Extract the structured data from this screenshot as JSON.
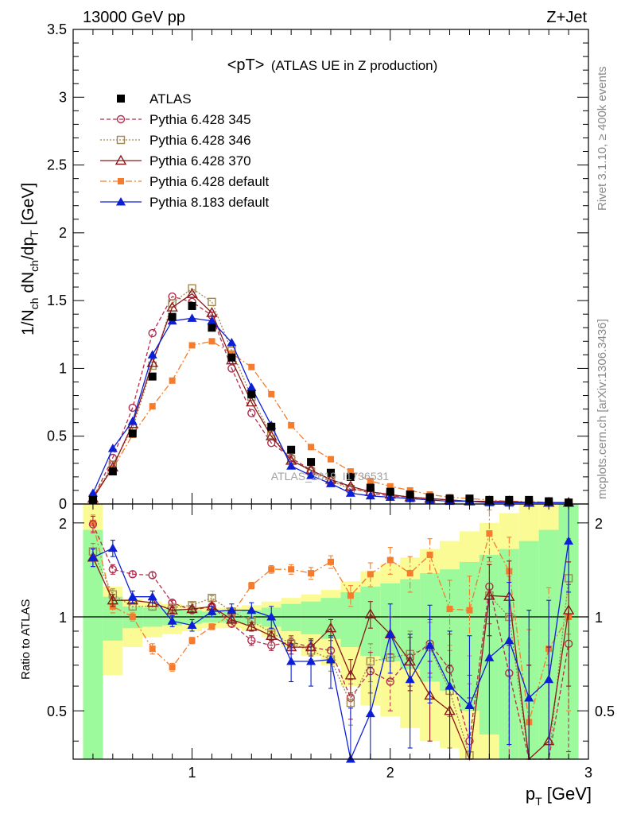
{
  "header": {
    "energy_label": "13000 GeV pp",
    "process_label": "Z+Jet"
  },
  "side_labels": {
    "rivet": "Rivet 3.1.10, ≥ 400k events",
    "mcplots": "mcplots.cern.ch [arXiv:1306.3436]"
  },
  "watermark": "ATLAS_2019_I1736531",
  "colors": {
    "atlas": "#000000",
    "p345": "#b22e4f",
    "p346": "#a08850",
    "p370": "#8b1a1a",
    "p6def": "#f47c2c",
    "p8def": "#0c1fd6",
    "band_green": "#9cf99c",
    "band_yellow": "#fbfb96"
  },
  "chart_data": [
    {
      "type": "line",
      "title_main": "<pT>",
      "title_sub": "(ATLAS UE in Z production)",
      "xlabel": "p_T [GeV]",
      "ylabel": "1/N_ch dN_ch/dp_T [GeV]",
      "xlim": [
        0.4,
        3.0
      ],
      "ylim": [
        0,
        3.5
      ],
      "yticks": [
        "0",
        "0.5",
        "1",
        "1.5",
        "2",
        "2.5",
        "3",
        "3.5"
      ],
      "xticks": [
        "1",
        "2",
        "3"
      ],
      "x": [
        0.5,
        0.6,
        0.7,
        0.8,
        0.9,
        1.0,
        1.1,
        1.2,
        1.3,
        1.4,
        1.5,
        1.6,
        1.7,
        1.8,
        1.9,
        2.0,
        2.1,
        2.2,
        2.3,
        2.4,
        2.5,
        2.6,
        2.7,
        2.8,
        2.9
      ],
      "series": [
        {
          "name": "ATLAS",
          "key": "atlas",
          "values": [
            0.03,
            0.24,
            0.52,
            0.94,
            1.38,
            1.46,
            1.3,
            1.08,
            0.81,
            0.57,
            0.4,
            0.31,
            0.23,
            0.2,
            0.12,
            0.09,
            0.07,
            0.05,
            0.04,
            0.04,
            0.03,
            0.03,
            0.03,
            0.02,
            0.01
          ]
        },
        {
          "name": "Pythia 6.428 345",
          "key": "p345",
          "values": [
            0.04,
            0.34,
            0.71,
            1.26,
            1.53,
            1.49,
            1.39,
            1.0,
            0.67,
            0.45,
            0.34,
            0.25,
            0.18,
            0.12,
            0.08,
            0.06,
            0.05,
            0.04,
            0.03,
            0.02,
            0.02,
            0.02,
            0.01,
            0.01,
            0.01
          ]
        },
        {
          "name": "Pythia 6.428 346",
          "key": "p346",
          "values": [
            0.04,
            0.29,
            0.56,
            1.02,
            1.48,
            1.59,
            1.49,
            1.13,
            0.79,
            0.51,
            0.33,
            0.24,
            0.17,
            0.11,
            0.09,
            0.07,
            0.05,
            0.04,
            0.03,
            0.02,
            0.02,
            0.01,
            0.01,
            0.01,
            0.01
          ]
        },
        {
          "name": "Pythia 6.428 370",
          "key": "p370",
          "values": [
            0.04,
            0.27,
            0.59,
            1.04,
            1.45,
            1.55,
            1.41,
            1.06,
            0.75,
            0.5,
            0.32,
            0.25,
            0.18,
            0.13,
            0.09,
            0.07,
            0.05,
            0.04,
            0.03,
            0.02,
            0.02,
            0.02,
            0.01,
            0.01,
            0.01
          ]
        },
        {
          "name": "Pythia 6.428 default",
          "key": "p6def",
          "values": [
            0.06,
            0.26,
            0.51,
            0.72,
            0.91,
            1.17,
            1.2,
            1.11,
            1.01,
            0.81,
            0.58,
            0.42,
            0.33,
            0.24,
            0.17,
            0.13,
            0.1,
            0.07,
            0.05,
            0.04,
            0.03,
            0.02,
            0.02,
            0.01,
            0.01
          ]
        },
        {
          "name": "Pythia 8.183 default",
          "key": "p8def",
          "values": [
            0.08,
            0.41,
            0.61,
            1.1,
            1.35,
            1.37,
            1.35,
            1.19,
            0.86,
            0.58,
            0.28,
            0.21,
            0.15,
            0.08,
            0.06,
            0.05,
            0.04,
            0.03,
            0.02,
            0.02,
            0.01,
            0.01,
            0.01,
            0.01,
            0.01
          ]
        }
      ]
    },
    {
      "type": "line",
      "ylabel": "Ratio to ATLAS",
      "xlim": [
        0.4,
        3.0
      ],
      "ylim": [
        0.35,
        2.3
      ],
      "yticks": [
        "0.5",
        "1",
        "2"
      ],
      "xticks": [
        "1",
        "2",
        "3"
      ],
      "reference": 1.0,
      "x": [
        0.5,
        0.6,
        0.7,
        0.8,
        0.9,
        1.0,
        1.1,
        1.2,
        1.3,
        1.4,
        1.5,
        1.6,
        1.7,
        1.8,
        1.9,
        2.0,
        2.1,
        2.2,
        2.3,
        2.4,
        2.5,
        2.6,
        2.7,
        2.8,
        2.9
      ],
      "band_green": {
        "low": [
          0.35,
          0.84,
          0.92,
          0.93,
          0.94,
          0.95,
          0.96,
          0.96,
          0.95,
          0.93,
          0.9,
          0.88,
          0.85,
          0.8,
          0.75,
          0.72,
          0.68,
          0.62,
          0.58,
          0.5,
          0.42,
          0.35,
          0.35,
          0.35,
          0.35
        ],
        "high": [
          1.9,
          1.16,
          1.08,
          1.07,
          1.06,
          1.05,
          1.04,
          1.04,
          1.05,
          1.07,
          1.1,
          1.12,
          1.15,
          1.2,
          1.25,
          1.28,
          1.32,
          1.38,
          1.42,
          1.5,
          1.58,
          1.65,
          1.75,
          1.9,
          2.3
        ]
      },
      "band_yellow": {
        "low": [
          0.35,
          0.65,
          0.8,
          0.86,
          0.88,
          0.9,
          0.92,
          0.92,
          0.9,
          0.86,
          0.8,
          0.75,
          0.7,
          0.6,
          0.52,
          0.48,
          0.44,
          0.4,
          0.38,
          0.35,
          0.35,
          0.35,
          0.35,
          0.35,
          0.35
        ],
        "high": [
          2.3,
          1.25,
          1.14,
          1.12,
          1.1,
          1.08,
          1.07,
          1.07,
          1.09,
          1.12,
          1.15,
          1.18,
          1.22,
          1.3,
          1.4,
          1.48,
          1.55,
          1.65,
          1.75,
          1.88,
          2.0,
          2.15,
          2.3,
          2.3,
          2.3
        ]
      },
      "series": [
        {
          "name": "Pythia 6.428 345",
          "key": "p345",
          "values": [
            1.98,
            1.42,
            1.37,
            1.36,
            1.11,
            1.05,
            1.08,
            0.95,
            0.84,
            0.81,
            0.83,
            0.8,
            0.78,
            0.55,
            0.67,
            0.62,
            0.74,
            0.82,
            0.68,
            0.4,
            1.25,
            0.66,
            0.3,
            0.3,
            0.82
          ],
          "errors": [
            0.12,
            0.05,
            0.03,
            0.03,
            0.02,
            0.02,
            0.02,
            0.02,
            0.03,
            0.03,
            0.04,
            0.05,
            0.06,
            0.08,
            0.1,
            0.12,
            0.14,
            0.16,
            0.2,
            0.25,
            0.3,
            0.35,
            0.4,
            0.4,
            0.45
          ]
        },
        {
          "name": "Pythia 6.428 346",
          "key": "p346",
          "values": [
            1.62,
            1.18,
            1.08,
            1.08,
            1.07,
            1.09,
            1.15,
            1.04,
            0.97,
            0.89,
            0.82,
            0.78,
            0.73,
            0.53,
            0.72,
            0.74,
            0.76,
            0.8,
            0.58,
            0.36,
            1.17,
            1.0,
            0.3,
            0.3,
            1.33
          ],
          "errors": [
            0.1,
            0.05,
            0.03,
            0.03,
            0.02,
            0.02,
            0.02,
            0.02,
            0.03,
            0.03,
            0.04,
            0.05,
            0.06,
            0.08,
            0.1,
            0.12,
            0.14,
            0.16,
            0.2,
            0.25,
            0.3,
            0.35,
            0.4,
            0.4,
            0.45
          ]
        },
        {
          "name": "Pythia 6.428 370",
          "key": "p370",
          "values": [
            1.55,
            1.13,
            1.13,
            1.11,
            1.05,
            1.06,
            1.08,
            0.98,
            0.93,
            0.87,
            0.8,
            0.8,
            0.92,
            0.65,
            1.02,
            0.88,
            0.72,
            0.56,
            0.5,
            0.3,
            1.17,
            1.16,
            0.3,
            0.4,
            1.05
          ],
          "errors": [
            0.1,
            0.05,
            0.03,
            0.03,
            0.02,
            0.02,
            0.02,
            0.02,
            0.03,
            0.03,
            0.04,
            0.05,
            0.06,
            0.08,
            0.1,
            0.12,
            0.14,
            0.16,
            0.2,
            0.25,
            0.3,
            0.35,
            0.4,
            0.4,
            0.45
          ]
        },
        {
          "name": "Pythia 6.428 default",
          "key": "p6def",
          "values": [
            2.0,
            1.08,
            1.0,
            0.79,
            0.69,
            0.84,
            0.93,
            1.02,
            1.26,
            1.42,
            1.42,
            1.38,
            1.5,
            1.17,
            1.37,
            1.52,
            1.38,
            1.58,
            1.06,
            1.05,
            1.85,
            1.4,
            0.46,
            0.79,
            1.0
          ],
          "errors": [
            0.12,
            0.05,
            0.03,
            0.03,
            0.02,
            0.02,
            0.02,
            0.02,
            0.03,
            0.04,
            0.05,
            0.06,
            0.07,
            0.09,
            0.12,
            0.15,
            0.18,
            0.2,
            0.25,
            0.3,
            0.35,
            0.4,
            0.45,
            0.45,
            0.5
          ]
        },
        {
          "name": "Pythia 8.183 default",
          "key": "p8def",
          "values": [
            1.55,
            1.66,
            1.16,
            1.16,
            0.97,
            0.94,
            1.04,
            1.05,
            1.05,
            1.0,
            0.72,
            0.72,
            0.73,
            0.35,
            0.49,
            0.88,
            0.63,
            0.81,
            0.6,
            0.52,
            0.74,
            0.84,
            0.55,
            0.63,
            1.75
          ],
          "errors": [
            0.1,
            0.1,
            0.05,
            0.05,
            0.04,
            0.04,
            0.04,
            0.05,
            0.06,
            0.08,
            0.1,
            0.12,
            0.14,
            0.16,
            0.2,
            0.22,
            0.25,
            0.28,
            0.3,
            0.35,
            0.4,
            0.45,
            0.5,
            0.5,
            0.55
          ]
        }
      ]
    }
  ]
}
